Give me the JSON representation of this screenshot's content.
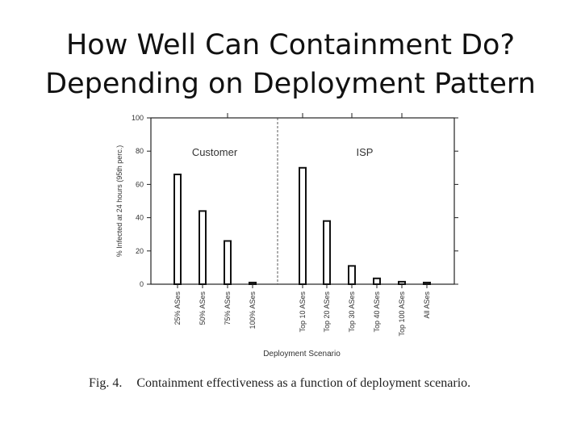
{
  "slide": {
    "title_line1": "How Well Can Containment Do?",
    "title_line2": "Depending on Deployment Pattern",
    "caption_fig": "Fig. 4.",
    "caption_text": "Containment effectiveness as a function of deployment scenario."
  },
  "chart_data": {
    "type": "bar",
    "xlabel": "Deployment Scenario",
    "ylabel": "% Infected at 24 hours (95th perc.)",
    "ylim": [
      0,
      100
    ],
    "yticks": [
      0,
      20,
      40,
      60,
      80,
      100
    ],
    "grid": false,
    "groups": [
      {
        "label": "Customer",
        "categories": [
          "25% ASes",
          "50% ASes",
          "75% ASes",
          "100% ASes"
        ]
      },
      {
        "label": "ISP",
        "categories": [
          "Top 10 ASes",
          "Top 20 ASes",
          "Top 30 ASes",
          "Top 40 ASes",
          "Top 100 ASes",
          "All ASes"
        ]
      }
    ],
    "categories": [
      "25% ASes",
      "50% ASes",
      "75% ASes",
      "100% ASes",
      "Top 10 ASes",
      "Top 20 ASes",
      "Top 30 ASes",
      "Top 40 ASes",
      "Top 100 ASes",
      "All ASes"
    ],
    "values": [
      66,
      44,
      26,
      1,
      70,
      38,
      11,
      3.5,
      1.5,
      1
    ]
  }
}
